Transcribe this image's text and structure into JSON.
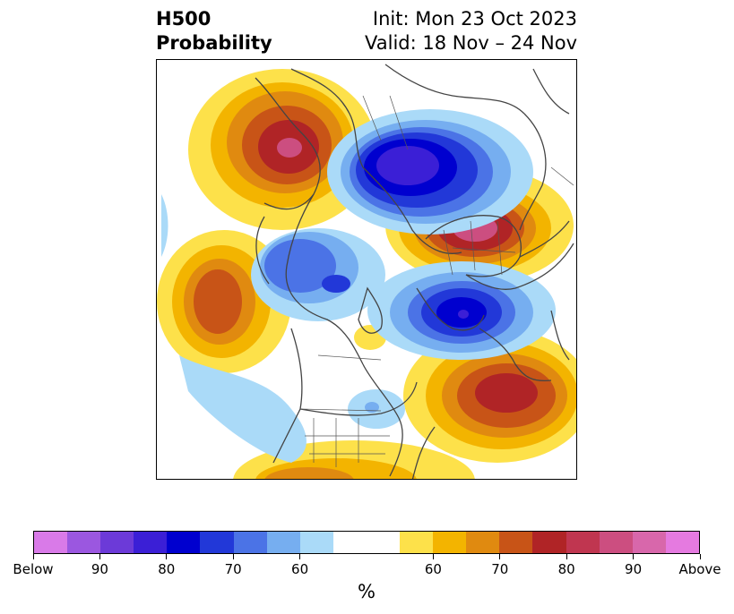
{
  "header": {
    "title_line1": "H500",
    "title_line2": "Probability",
    "init": "Init: Mon 23 Oct 2023",
    "valid": "Valid: 18 Nov – 24 Nov"
  },
  "colors": {
    "below": [
      "#d97ae8",
      "#9b57e0",
      "#6c3ad8",
      "#3b1fd6",
      "#0000cf",
      "#2238d8",
      "#4b73e6",
      "#76aef0",
      "#aadaf8"
    ],
    "neutral": "#ffffff",
    "above": [
      "#fde14a",
      "#f3b400",
      "#e08a10",
      "#c85417",
      "#b02426",
      "#c03650",
      "#cc4e80",
      "#d867ab",
      "#e57ae0"
    ],
    "coastline": "#444444"
  },
  "colorbar": {
    "unit": "%",
    "tick_labels": [
      "Below",
      "90",
      "80",
      "70",
      "60",
      "60",
      "70",
      "80",
      "90",
      "Above"
    ]
  }
}
